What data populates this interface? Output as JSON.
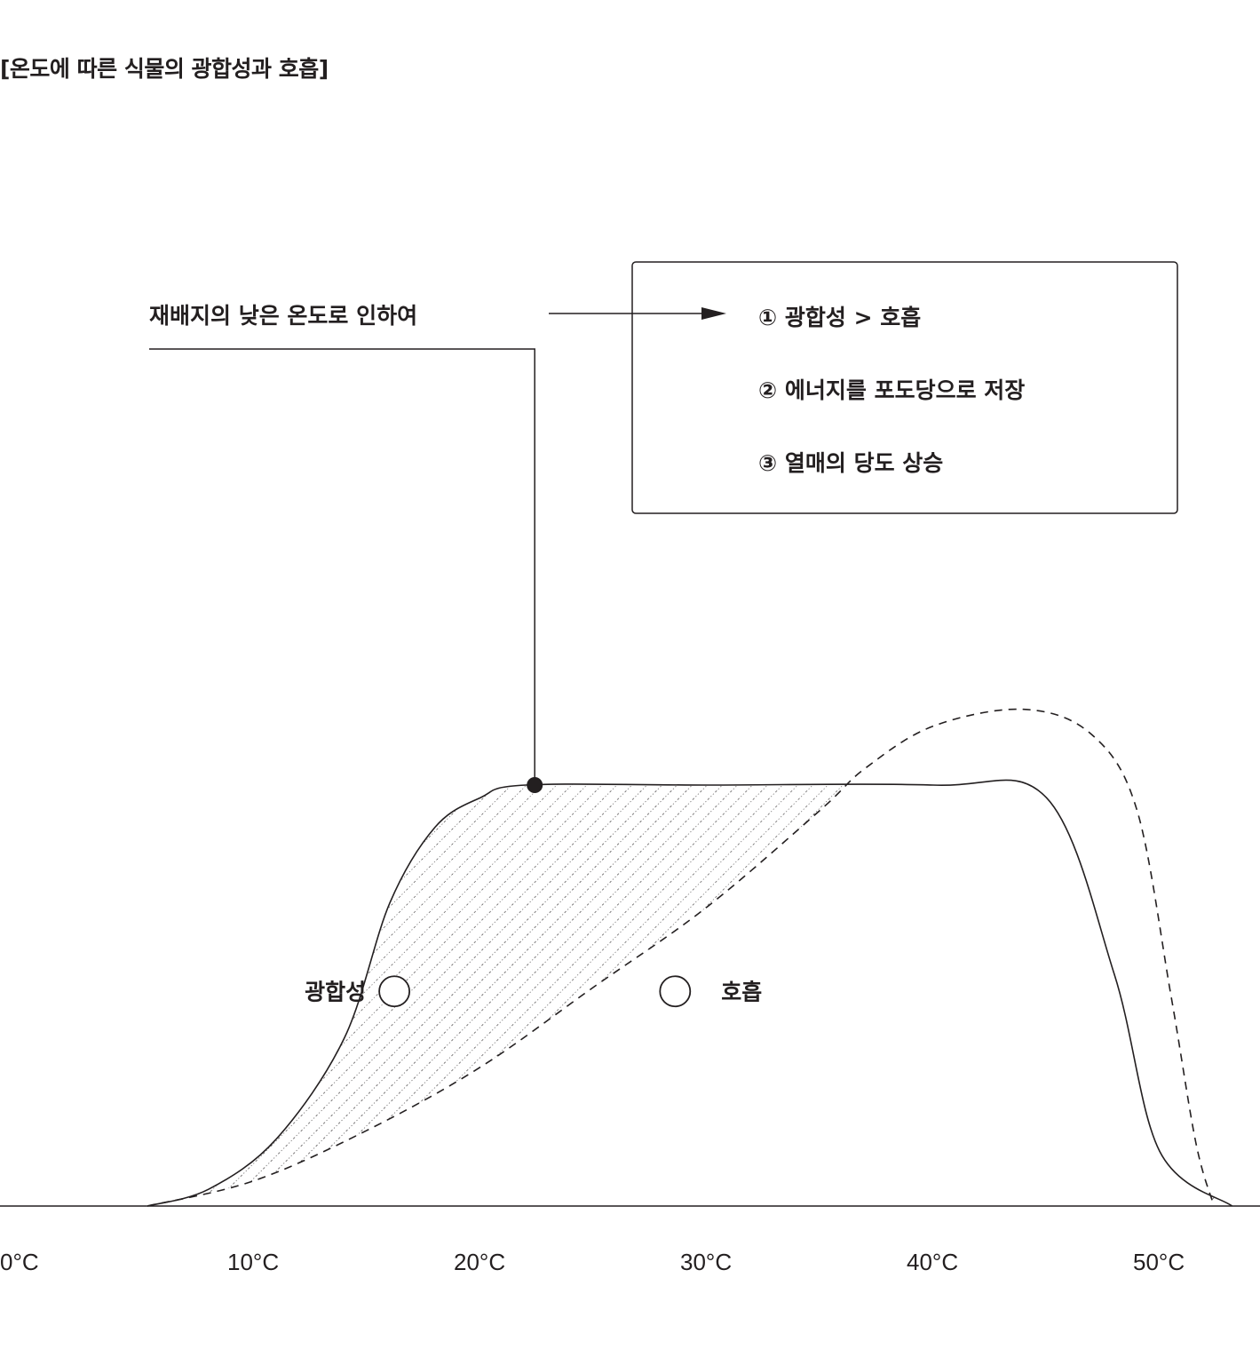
{
  "title": "[온도에 따른 식물의 광합성과 호흡]",
  "chart_data": {
    "type": "line",
    "xlabel": "",
    "ylabel": "",
    "xlim": [
      0,
      55
    ],
    "x_ticks": [
      0,
      10,
      20,
      30,
      40,
      50
    ],
    "x_tick_labels": [
      "0°C",
      "10°C",
      "20°C",
      "30°C",
      "40°C",
      "50°C"
    ],
    "y_relative_max": 1.0,
    "grid": false,
    "series": [
      {
        "name": "광합성",
        "style": "solid",
        "points": [
          [
            5.3,
            0.0
          ],
          [
            8,
            0.04
          ],
          [
            11,
            0.16
          ],
          [
            14,
            0.4
          ],
          [
            16,
            0.72
          ],
          [
            18,
            0.9
          ],
          [
            20,
            0.97
          ],
          [
            22,
            1.0
          ],
          [
            30,
            1.0
          ],
          [
            40,
            1.0
          ],
          [
            45,
            0.97
          ],
          [
            48,
            0.55
          ],
          [
            50,
            0.13
          ],
          [
            53.2,
            0.0
          ]
        ]
      },
      {
        "name": "호흡",
        "style": "dashed",
        "points": [
          [
            5.3,
            0.0
          ],
          [
            10,
            0.06
          ],
          [
            15,
            0.18
          ],
          [
            20,
            0.33
          ],
          [
            25,
            0.52
          ],
          [
            30,
            0.71
          ],
          [
            35,
            0.94
          ],
          [
            37,
            1.04
          ],
          [
            40,
            1.14
          ],
          [
            44,
            1.18
          ],
          [
            47,
            1.12
          ],
          [
            49,
            0.94
          ],
          [
            50.5,
            0.5
          ],
          [
            51.6,
            0.15
          ],
          [
            52.4,
            0.0
          ]
        ]
      }
    ],
    "markers": [
      {
        "label": "광합성",
        "x": 16.2,
        "y": 0.51
      },
      {
        "label": "호흡",
        "x": 28.6,
        "y": 0.51
      }
    ],
    "highlight_point": {
      "x": 22.4,
      "y": 1.0
    },
    "hatched_region": "between 광합성 and 호흡"
  },
  "annotation": {
    "cause": "재배지의 낮은 온도로 인하여",
    "effects": [
      "① 광합성 > 호흡",
      "② 에너지를 포도당으로 저장",
      "③ 열매의 당도 상승"
    ]
  },
  "colors": {
    "ink": "#231f20",
    "background": "#ffffff"
  }
}
